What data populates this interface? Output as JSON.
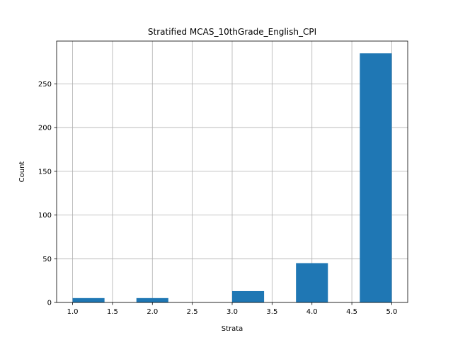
{
  "chart_data": {
    "type": "bar",
    "title": "Stratified MCAS_10thGrade_English_CPI",
    "xlabel": "Strata",
    "ylabel": "Count",
    "xlim": [
      0.8,
      5.2
    ],
    "ylim": [
      0,
      299
    ],
    "x_ticks": [
      1.0,
      1.5,
      2.0,
      2.5,
      3.0,
      3.5,
      4.0,
      4.5,
      5.0
    ],
    "x_tick_labels": [
      "1.0",
      "1.5",
      "2.0",
      "2.5",
      "3.0",
      "3.5",
      "4.0",
      "4.5",
      "5.0"
    ],
    "y_ticks": [
      0,
      50,
      100,
      150,
      200,
      250
    ],
    "y_tick_labels": [
      "0",
      "50",
      "100",
      "150",
      "200",
      "250"
    ],
    "grid": true,
    "bar_color": "#1f77b4",
    "bins": [
      {
        "x0": 1.0,
        "x1": 1.4,
        "count": 5
      },
      {
        "x0": 1.4,
        "x1": 1.8,
        "count": 0
      },
      {
        "x0": 1.8,
        "x1": 2.2,
        "count": 5
      },
      {
        "x0": 2.2,
        "x1": 2.6,
        "count": 0
      },
      {
        "x0": 2.6,
        "x1": 3.0,
        "count": 0
      },
      {
        "x0": 3.0,
        "x1": 3.4,
        "count": 13
      },
      {
        "x0": 3.4,
        "x1": 3.8,
        "count": 0
      },
      {
        "x0": 3.8,
        "x1": 4.2,
        "count": 45
      },
      {
        "x0": 4.2,
        "x1": 4.6,
        "count": 0
      },
      {
        "x0": 4.6,
        "x1": 5.0,
        "count": 285
      }
    ]
  }
}
